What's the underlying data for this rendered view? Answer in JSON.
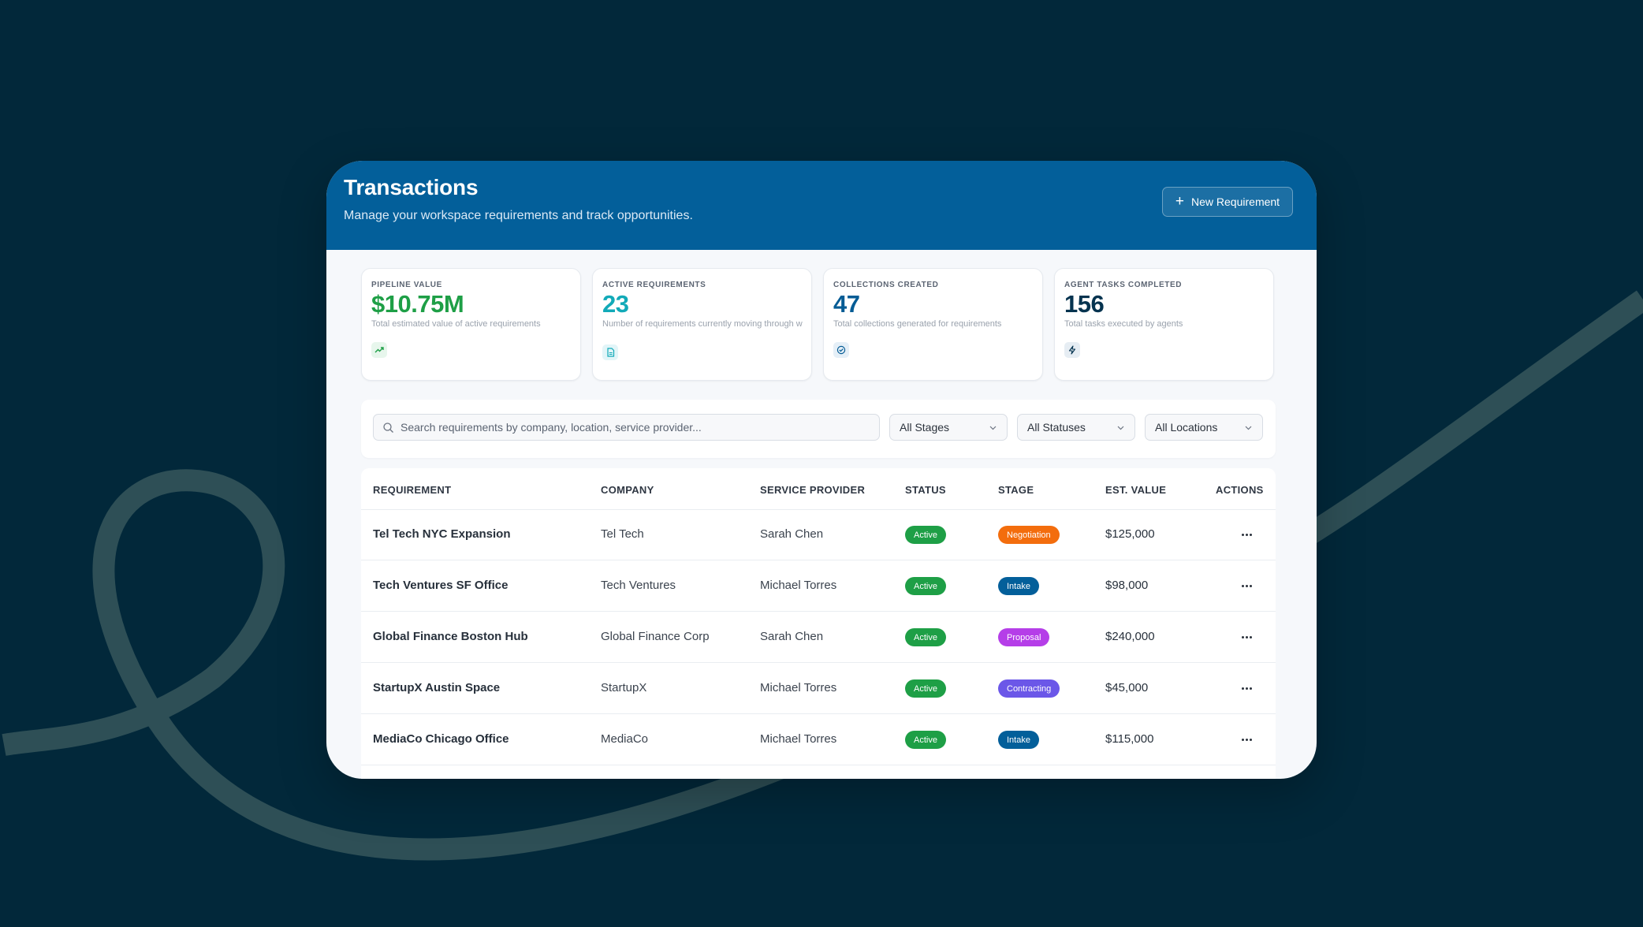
{
  "header": {
    "title": "Transactions",
    "subtitle": "Manage your workspace requirements and track opportunities.",
    "new_button": "New Requirement"
  },
  "kpis": [
    {
      "label": "PIPELINE VALUE",
      "value": "$10.75M",
      "desc": "Total estimated value of active requirements",
      "color": "#1e9f46",
      "icon": "trending-up-icon"
    },
    {
      "label": "ACTIVE REQUIREMENTS",
      "value": "23",
      "desc": "Number of requirements currently moving through w",
      "color": "#12aab8",
      "icon": "document-icon"
    },
    {
      "label": "COLLECTIONS CREATED",
      "value": "47",
      "desc": "Total collections generated for requirements",
      "color": "#055c95",
      "icon": "check-circle-icon"
    },
    {
      "label": "AGENT TASKS COMPLETED",
      "value": "156",
      "desc": "Total tasks executed by agents",
      "color": "#05334f",
      "icon": "bolt-icon"
    }
  ],
  "filters": {
    "search_placeholder": "Search requirements by company, location, service provider...",
    "stages": "All Stages",
    "statuses": "All Statuses",
    "locations": "All Locations"
  },
  "table": {
    "headers": {
      "requirement": "REQUIREMENT",
      "company": "COMPANY",
      "provider": "SERVICE PROVIDER",
      "status": "STATUS",
      "stage": "STAGE",
      "value": "EST. VALUE",
      "actions": "ACTIONS"
    },
    "rows": [
      {
        "requirement": "Tel Tech NYC Expansion",
        "company": "Tel Tech",
        "provider": "Sarah Chen",
        "status": "Active",
        "stage": "Negotiation",
        "value": "$125,000"
      },
      {
        "requirement": "Tech Ventures SF Office",
        "company": "Tech Ventures",
        "provider": "Michael Torres",
        "status": "Active",
        "stage": "Intake",
        "value": "$98,000"
      },
      {
        "requirement": "Global Finance Boston Hub",
        "company": "Global Finance Corp",
        "provider": "Sarah Chen",
        "status": "Active",
        "stage": "Proposal",
        "value": "$240,000"
      },
      {
        "requirement": "StartupX Austin Space",
        "company": "StartupX",
        "provider": "Michael Torres",
        "status": "Active",
        "stage": "Contracting",
        "value": "$45,000"
      },
      {
        "requirement": "MediaCo Chicago Office",
        "company": "MediaCo",
        "provider": "Michael Torres",
        "status": "Active",
        "stage": "Intake",
        "value": "$115,000"
      }
    ]
  },
  "colors": {
    "background": "#02283a",
    "header": "#035f9a",
    "status_active": "#1e9f46",
    "stage_negotiation": "#f36d0d",
    "stage_intake": "#035f9a",
    "stage_proposal": "#b53ee8",
    "stage_contracting": "#6b57e8"
  }
}
